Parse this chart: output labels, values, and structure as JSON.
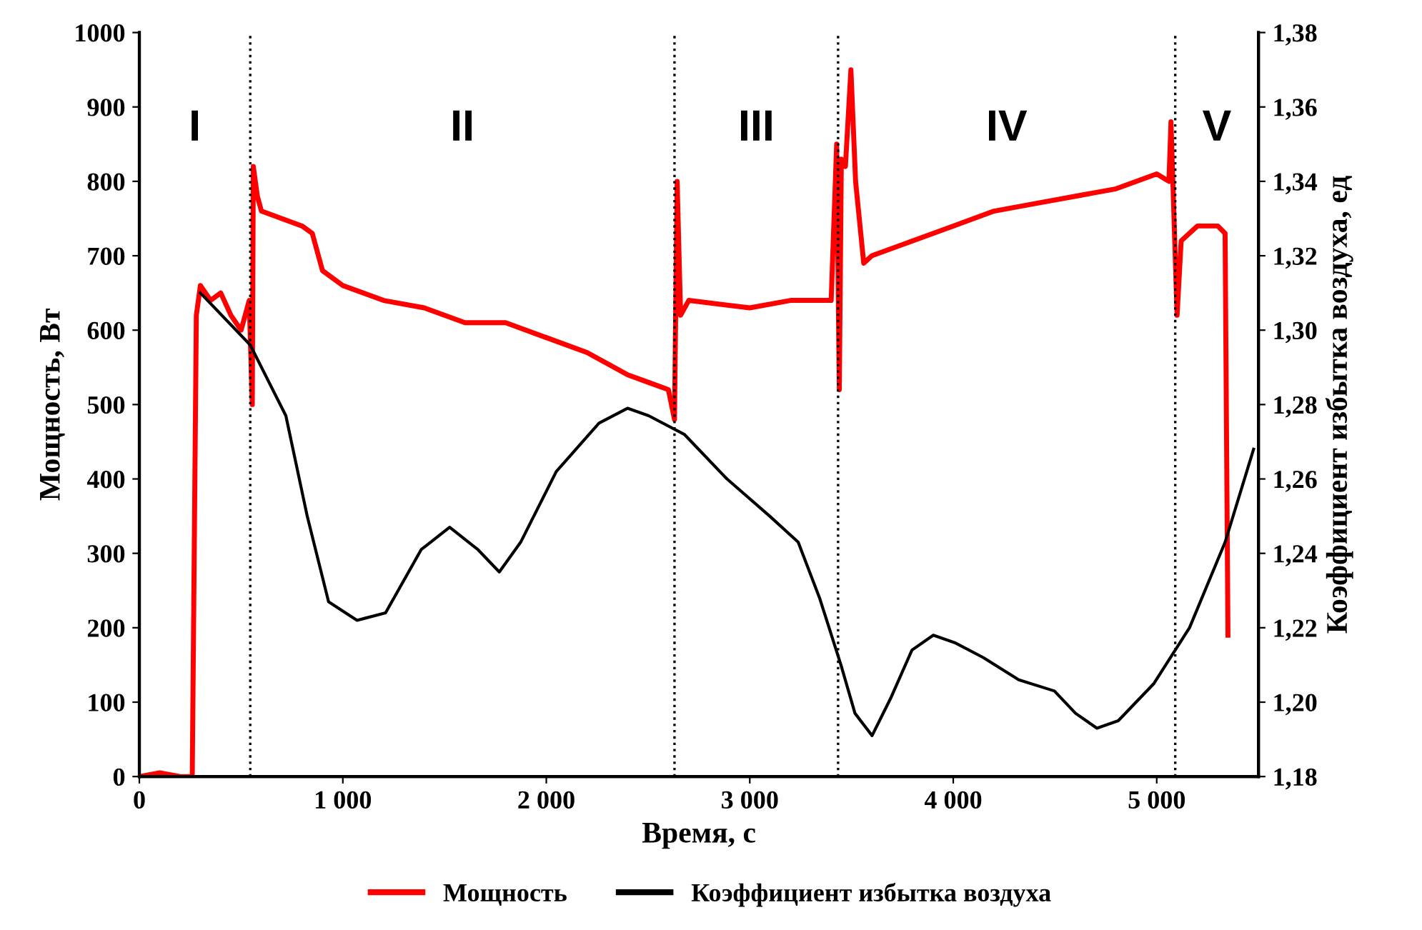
{
  "chart_data": {
    "type": "line",
    "xlabel": "Время, с",
    "ylabel": "Мощность, Вт",
    "y2label": "Коэффициент избытка воздуха, ед",
    "xlim": [
      0,
      5500
    ],
    "xticks": [
      0,
      {
        "value": 1000,
        "label": "1 000"
      },
      {
        "value": 2000,
        "label": "2 000"
      },
      {
        "value": 3000,
        "label": "3 000"
      },
      {
        "value": 4000,
        "label": "4 000"
      },
      {
        "value": 5000,
        "label": "5 000"
      }
    ],
    "ylim": [
      0,
      1000
    ],
    "yticks": [
      0,
      100,
      200,
      300,
      400,
      500,
      600,
      700,
      800,
      900,
      1000
    ],
    "y2lim": [
      1.18,
      1.38
    ],
    "y2ticks": [
      {
        "value": 1.18,
        "label": "1,18"
      },
      {
        "value": 1.2,
        "label": "1,20"
      },
      {
        "value": 1.22,
        "label": "1,22"
      },
      {
        "value": 1.24,
        "label": "1,24"
      },
      {
        "value": 1.26,
        "label": "1,26"
      },
      {
        "value": 1.28,
        "label": "1,28"
      },
      {
        "value": 1.3,
        "label": "1,30"
      },
      {
        "value": 1.32,
        "label": "1,32"
      },
      {
        "value": 1.34,
        "label": "1,34"
      },
      {
        "value": 1.36,
        "label": "1,36"
      },
      {
        "value": 1.38,
        "label": "1,38"
      }
    ],
    "grid": false,
    "legend": "bottom",
    "line_style": "solid",
    "marker": "none",
    "series": [
      {
        "name": "Мощность",
        "color": "#ff0000",
        "x": [
          0,
          100,
          200,
          260,
          280,
          300,
          350,
          400,
          450,
          500,
          540,
          555,
          560,
          580,
          600,
          700,
          800,
          850,
          900,
          1000,
          1200,
          1400,
          1600,
          1800,
          2000,
          2200,
          2400,
          2500,
          2600,
          2630,
          2643,
          2660,
          2700,
          3000,
          3200,
          3400,
          3427,
          3440,
          3450,
          3470,
          3497,
          3520,
          3560,
          3600,
          3800,
          4000,
          4200,
          4400,
          4600,
          4800,
          5000,
          5060,
          5070,
          5100,
          5120,
          5200,
          5300,
          5336,
          5350
        ],
        "values": [
          0,
          5,
          0,
          0,
          620,
          660,
          640,
          650,
          620,
          600,
          640,
          500,
          820,
          780,
          760,
          750,
          740,
          730,
          680,
          660,
          640,
          630,
          610,
          610,
          590,
          570,
          540,
          530,
          520,
          480,
          800,
          620,
          640,
          630,
          640,
          640,
          850,
          520,
          830,
          820,
          950,
          800,
          690,
          700,
          720,
          740,
          760,
          770,
          780,
          790,
          810,
          800,
          880,
          620,
          720,
          740,
          740,
          730,
          190
        ]
      },
      {
        "name": "Коэффициент избытка воздуха",
        "color": "#000000",
        "axis": "y2",
        "x": [
          300,
          545,
          720,
          825,
          930,
          1070,
          1210,
          1385,
          1525,
          1664,
          1769,
          1874,
          2049,
          2259,
          2399,
          2503,
          2678,
          2888,
          3098,
          3238,
          3343,
          3448,
          3517,
          3601,
          3692,
          3797,
          3902,
          4007,
          4147,
          4322,
          4497,
          4601,
          4706,
          4811,
          4986,
          5161,
          5336,
          5476
        ],
        "values": [
          1.31,
          1.296,
          1.277,
          1.25,
          1.227,
          1.222,
          1.224,
          1.241,
          1.247,
          1.241,
          1.235,
          1.243,
          1.262,
          1.275,
          1.279,
          1.277,
          1.272,
          1.26,
          1.25,
          1.243,
          1.228,
          1.21,
          1.197,
          1.191,
          1.201,
          1.214,
          1.218,
          1.216,
          1.212,
          1.206,
          1.203,
          1.197,
          1.193,
          1.195,
          1.205,
          1.22,
          1.243,
          1.268
        ]
      }
    ],
    "ref_lines": [
      {
        "axis": "x",
        "value": 545,
        "line_style": "dotted",
        "color": "#000000"
      },
      {
        "axis": "x",
        "value": 2630,
        "line_style": "dotted",
        "color": "#000000"
      },
      {
        "axis": "x",
        "value": 3434,
        "line_style": "dotted",
        "color": "#000000"
      },
      {
        "axis": "x",
        "value": 5091,
        "line_style": "dotted",
        "color": "#000000"
      }
    ],
    "annotations": [
      "I",
      "II",
      "III",
      "IV",
      "V"
    ]
  }
}
